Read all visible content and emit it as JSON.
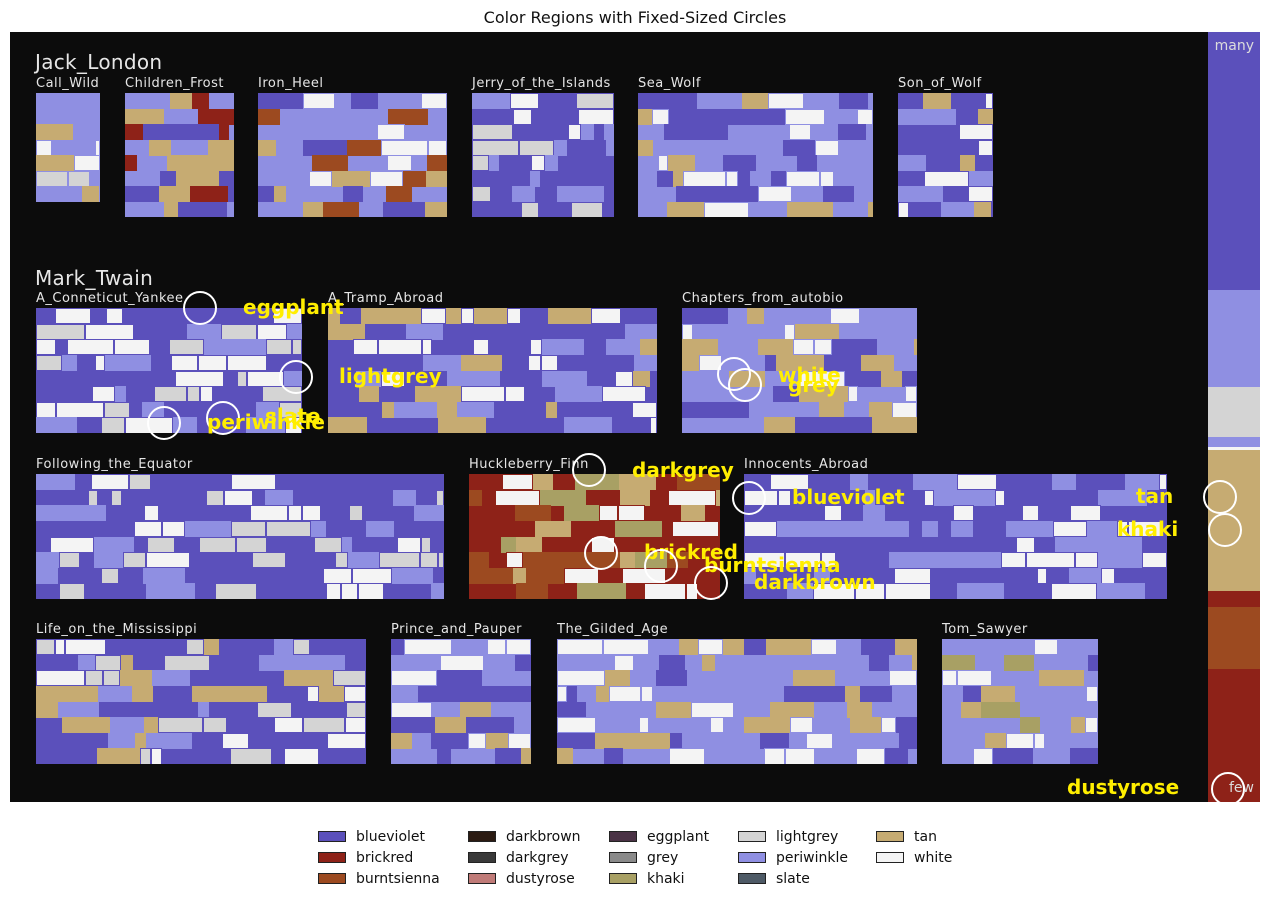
{
  "title": "Color Regions with Fixed-Sized Circles",
  "colors": {
    "blueviolet": "#5b50bb",
    "brickred": "#8e2218",
    "burntsienna": "#9c4a20",
    "darkbrown": "#2b1b12",
    "darkgrey": "#393939",
    "dustyrose": "#c07b78",
    "eggplant": "#4a3245",
    "grey": "#8a8a8a",
    "khaki": "#a8a064",
    "lightgrey": "#d4d4d4",
    "periwinkle": "#8f8fe2",
    "slate": "#4e5a66",
    "tan": "#c6ab72",
    "white": "#f4f4f4"
  },
  "groups": [
    {
      "name": "Jack_London"
    },
    {
      "name": "Mark_Twain"
    }
  ],
  "books": [
    {
      "label": "Call_Wild",
      "base": "periwinkle",
      "accents": [
        "white",
        "lightgrey",
        "tan"
      ]
    },
    {
      "label": "Children_Frost",
      "base": "periwinkle",
      "accents": [
        "tan",
        "brickred",
        "blueviolet"
      ]
    },
    {
      "label": "Iron_Heel",
      "base": "periwinkle",
      "accents": [
        "white",
        "tan",
        "burntsienna",
        "blueviolet"
      ]
    },
    {
      "label": "Jerry_of_the_Islands",
      "base": "blueviolet",
      "accents": [
        "periwinkle",
        "white",
        "lightgrey"
      ]
    },
    {
      "label": "Sea_Wolf",
      "base": "periwinkle",
      "accents": [
        "blueviolet",
        "white",
        "tan"
      ]
    },
    {
      "label": "Son_of_Wolf",
      "base": "blueviolet",
      "accents": [
        "periwinkle",
        "tan",
        "white"
      ]
    },
    {
      "label": "A_Conneticut_Yankee",
      "base": "blueviolet",
      "accents": [
        "periwinkle",
        "white",
        "lightgrey"
      ]
    },
    {
      "label": "A_Tramp_Abroad",
      "base": "blueviolet",
      "accents": [
        "periwinkle",
        "white",
        "tan"
      ]
    },
    {
      "label": "Chapters_from_autobio",
      "base": "periwinkle",
      "accents": [
        "blueviolet",
        "white",
        "tan"
      ]
    },
    {
      "label": "Following_the_Equator",
      "base": "blueviolet",
      "accents": [
        "periwinkle",
        "white",
        "lightgrey"
      ]
    },
    {
      "label": "Huckleberry_Finn",
      "base": "brickred",
      "accents": [
        "burntsienna",
        "tan",
        "khaki",
        "white"
      ]
    },
    {
      "label": "Innocents_Abroad",
      "base": "blueviolet",
      "accents": [
        "periwinkle",
        "white"
      ]
    },
    {
      "label": "Life_on_the_Mississippi",
      "base": "blueviolet",
      "accents": [
        "periwinkle",
        "white",
        "tan",
        "lightgrey"
      ]
    },
    {
      "label": "Prince_and_Pauper",
      "base": "periwinkle",
      "accents": [
        "blueviolet",
        "tan",
        "white"
      ]
    },
    {
      "label": "The_Gilded_Age",
      "base": "periwinkle",
      "accents": [
        "blueviolet",
        "white",
        "tan"
      ]
    },
    {
      "label": "Tom_Sawyer",
      "base": "periwinkle",
      "accents": [
        "white",
        "tan",
        "khaki",
        "blueviolet"
      ]
    }
  ],
  "annotations": [
    {
      "label": "eggplant"
    },
    {
      "label": "lightgrey"
    },
    {
      "label": "slate"
    },
    {
      "label": "periwinkle"
    },
    {
      "label": "white"
    },
    {
      "label": "grey"
    },
    {
      "label": "darkgrey"
    },
    {
      "label": "blueviolet"
    },
    {
      "label": "tan"
    },
    {
      "label": "khaki"
    },
    {
      "label": "brickred"
    },
    {
      "label": "burntsienna"
    },
    {
      "label": "darkbrown"
    },
    {
      "label": "dustyrose"
    }
  ],
  "scale": {
    "top_label": "many",
    "bottom_label": "few",
    "segments": [
      "blueviolet",
      "periwinkle",
      "white",
      "tan",
      "brickred"
    ]
  },
  "legend": [
    "blueviolet",
    "brickred",
    "burntsienna",
    "darkbrown",
    "darkgrey",
    "dustyrose",
    "eggplant",
    "grey",
    "khaki",
    "lightgrey",
    "periwinkle",
    "slate",
    "tan",
    "white"
  ]
}
